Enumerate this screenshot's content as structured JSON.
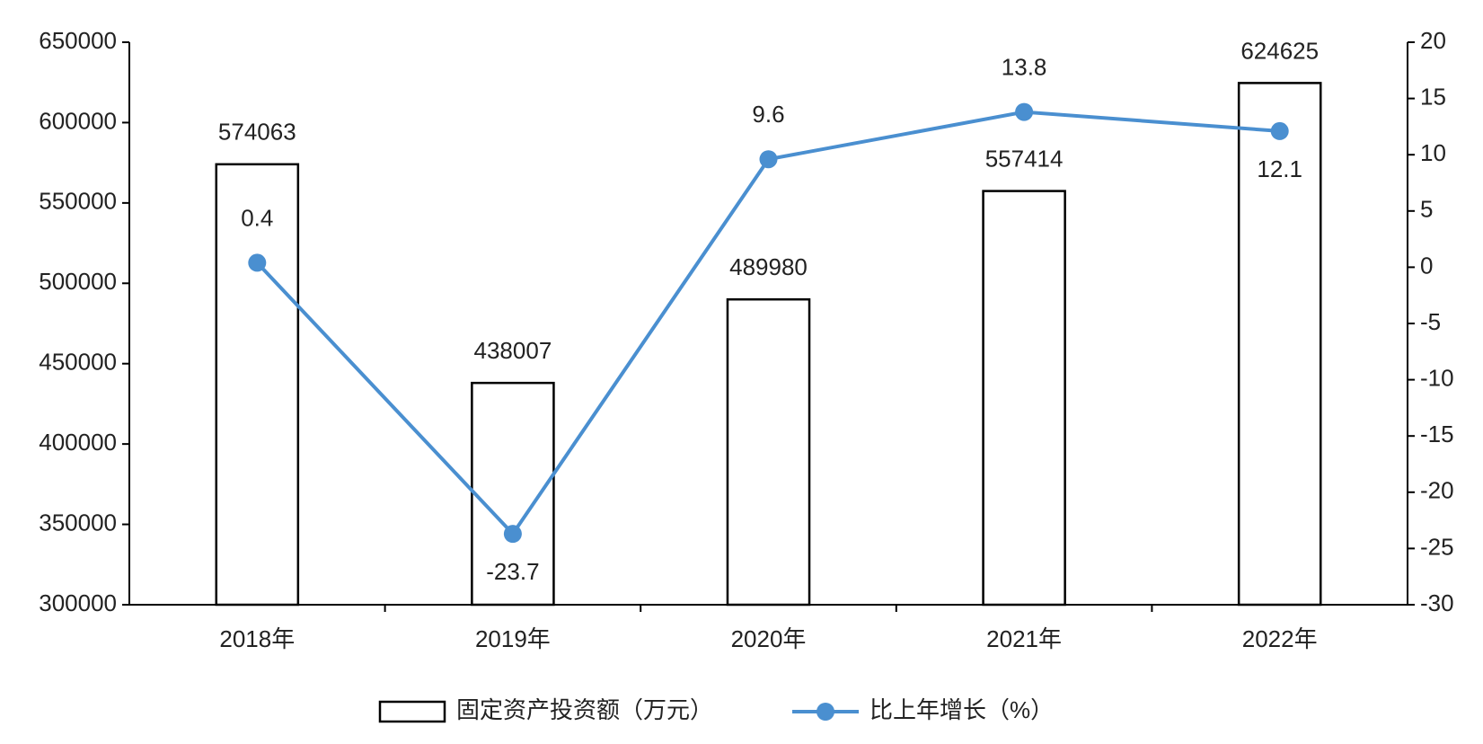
{
  "chart_data": {
    "type": "bar-line",
    "categories": [
      "2018年",
      "2019年",
      "2020年",
      "2021年",
      "2022年"
    ],
    "series": [
      {
        "name": "固定资产投资额（万元）",
        "type": "bar",
        "color": "#ffffff",
        "edgecolor": "#000000",
        "values": [
          574063,
          438007,
          489980,
          557414,
          624625
        ]
      },
      {
        "name": "比上年增长（%）",
        "type": "line",
        "axis": "y2",
        "color": "#4a8fd0",
        "values": [
          0.4,
          -23.7,
          9.6,
          13.8,
          12.1
        ]
      }
    ],
    "ylim": [
      300000,
      650000
    ],
    "yticks": [
      300000,
      350000,
      400000,
      450000,
      500000,
      550000,
      600000,
      650000
    ],
    "y2lim": [
      -30,
      20
    ],
    "y2ticks": [
      -30,
      -25,
      -20,
      -15,
      -10,
      -5,
      0,
      5,
      10,
      15,
      20
    ],
    "legend": "bottom"
  }
}
